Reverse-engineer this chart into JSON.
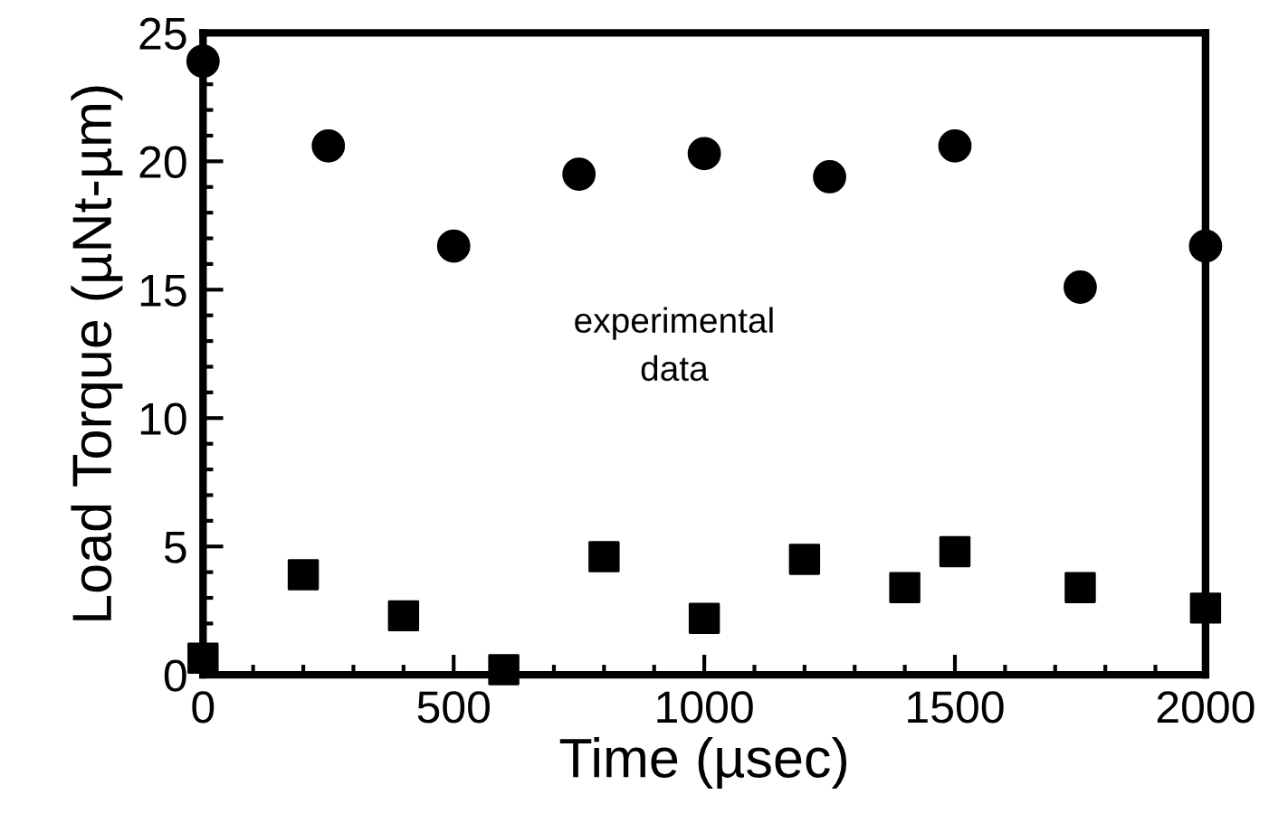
{
  "chart_data": {
    "type": "scatter",
    "xlabel": "Time (µsec)",
    "ylabel": "Load Torque (µNt-µm)",
    "annotations": [
      "experimental\ndata"
    ],
    "series": [
      {
        "color": "#000000",
        "marker": "circle",
        "x": [
          0,
          250,
          500,
          750,
          1000,
          1250,
          1500,
          1750,
          2000
        ],
        "values": [
          23.9,
          20.6,
          16.7,
          19.5,
          20.3,
          19.4,
          20.6,
          15.1,
          16.7
        ]
      },
      {
        "color": "#000000",
        "marker": "square",
        "x": [
          0,
          200,
          400,
          600,
          800,
          1000,
          1200,
          1400,
          1500,
          1750,
          2000
        ],
        "values": [
          0.65,
          3.9,
          2.3,
          0.2,
          4.6,
          2.2,
          4.5,
          3.4,
          4.8,
          3.4,
          2.6
        ]
      }
    ],
    "xlim": [
      0,
      2000
    ],
    "xticks": [
      0,
      500,
      1000,
      1500,
      2000
    ],
    "ylim": [
      0,
      25
    ],
    "yticks": [
      0,
      5,
      10,
      15,
      20,
      25
    ],
    "grid": false,
    "legend": false
  }
}
